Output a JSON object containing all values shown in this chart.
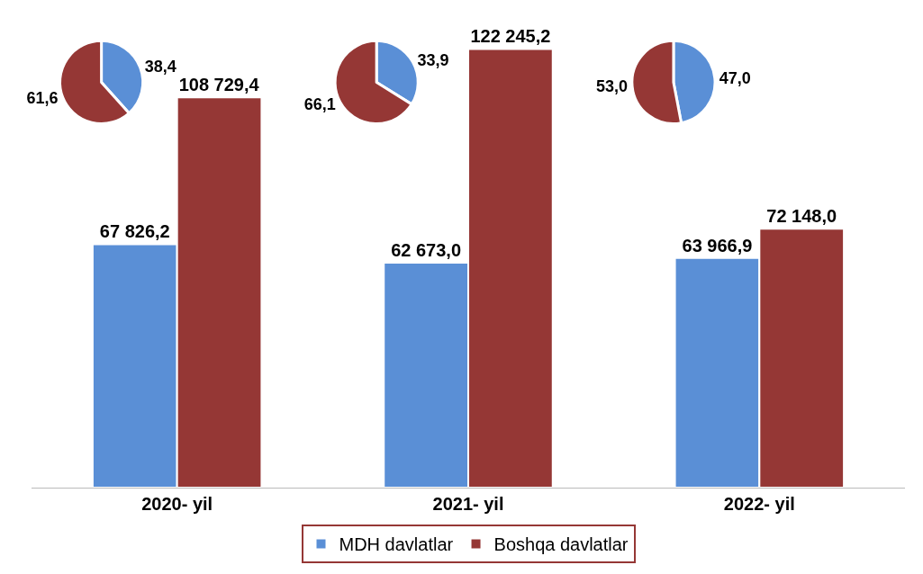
{
  "chart_data": [
    {
      "type": "bar",
      "categories": [
        "2020- yil",
        "2021- yil",
        "2022- yil"
      ],
      "legend": "bottom",
      "series": [
        {
          "name": "MDH davlatlar",
          "color": "#5a8fd6",
          "values": [
            67826.2,
            62673.0,
            63966.9
          ],
          "value_labels": [
            "67 826,2",
            "62 673,0",
            "63 966,9"
          ]
        },
        {
          "name": "Boshqa davlatlar",
          "color": "#953735",
          "values": [
            108729.4,
            122245.2,
            72148.0
          ],
          "value_labels": [
            "108 729,4",
            "122 245,2",
            "72 148,0"
          ]
        }
      ]
    },
    {
      "type": "pie",
      "categories": [
        null,
        null
      ],
      "values": [
        38.4,
        61.6
      ],
      "colors": [
        "#5a8fd6",
        "#953735"
      ],
      "value_labels": [
        "38,4",
        "61,6"
      ]
    },
    {
      "type": "pie",
      "categories": [
        null,
        null
      ],
      "values": [
        33.9,
        66.1
      ],
      "colors": [
        "#5a8fd6",
        "#953735"
      ],
      "value_labels": [
        "33,9",
        "66,1"
      ]
    },
    {
      "type": "pie",
      "categories": [
        null,
        null
      ],
      "values": [
        47.0,
        53.0
      ],
      "colors": [
        "#5a8fd6",
        "#953735"
      ],
      "value_labels": [
        "47,0",
        "53,0"
      ]
    }
  ]
}
